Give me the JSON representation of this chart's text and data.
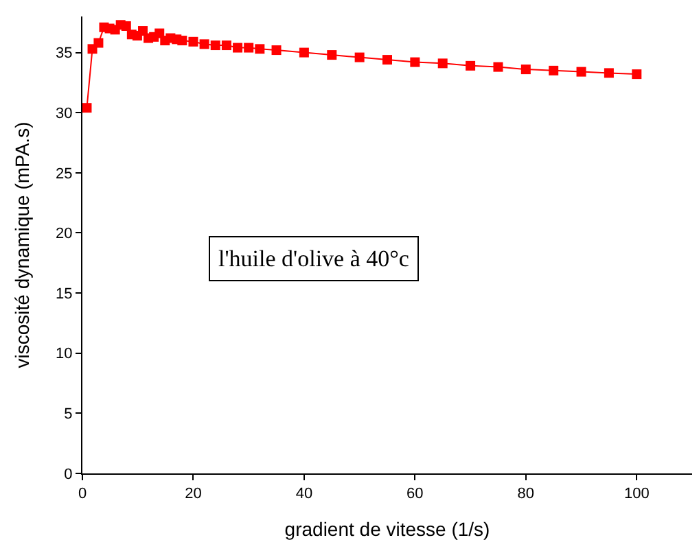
{
  "chart_data": {
    "type": "line",
    "xlabel": "gradient de vitesse (1/s)",
    "ylabel": "viscosité dynamique (mPA.s)",
    "annotations": [
      "l'huile d'olive à 40°c"
    ],
    "x": [
      0.8,
      1.8,
      2.9,
      3.9,
      4.9,
      5.9,
      6.9,
      7.9,
      8.9,
      9.9,
      10.9,
      11.9,
      12.9,
      13.9,
      14.9,
      15.9,
      17,
      18,
      20,
      22,
      24,
      26,
      28,
      30,
      32,
      35,
      40,
      45,
      50,
      55,
      60,
      65,
      70,
      75,
      80,
      85,
      90,
      95,
      100
    ],
    "series": [
      {
        "color": "#ff0000",
        "values": [
          30.4,
          35.3,
          35.8,
          37.1,
          37.0,
          36.9,
          37.3,
          37.2,
          36.5,
          36.4,
          36.8,
          36.2,
          36.3,
          36.6,
          36.0,
          36.2,
          36.1,
          36.0,
          35.9,
          35.7,
          35.6,
          35.6,
          35.4,
          35.4,
          35.3,
          35.2,
          35.0,
          34.8,
          34.6,
          34.4,
          34.2,
          34.1,
          33.9,
          33.8,
          33.6,
          33.5,
          33.4,
          33.3,
          33.2
        ]
      }
    ],
    "marker": "square",
    "line_style": "solid",
    "xlim": [
      0,
      110
    ],
    "ylim": [
      0,
      38
    ],
    "xticks": [
      0,
      20,
      40,
      60,
      80,
      100
    ],
    "yticks": [
      0,
      5,
      10,
      15,
      20,
      25,
      30,
      35
    ]
  }
}
